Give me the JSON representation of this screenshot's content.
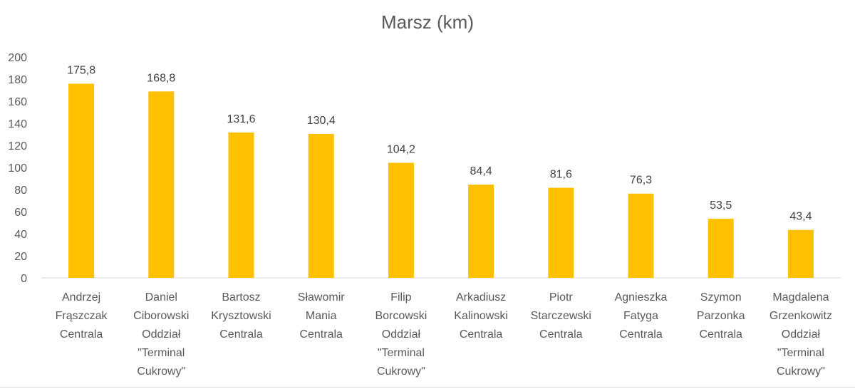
{
  "chart_data": {
    "type": "bar",
    "title": "Marsz (km)",
    "xlabel": "",
    "ylabel": "",
    "ylim": [
      0,
      200
    ],
    "yticks": [
      0,
      20,
      40,
      60,
      80,
      100,
      120,
      140,
      160,
      180,
      200
    ],
    "grid": false,
    "legend": "none",
    "bar_color": "#FFC000",
    "categories": [
      [
        "Andrzej",
        "Frąszczak",
        "Centrala"
      ],
      [
        "Daniel",
        "Ciborowski",
        "Oddział",
        "\"Terminal",
        "Cukrowy\""
      ],
      [
        "Bartosz",
        "Krysztowski",
        "Centrala"
      ],
      [
        "Sławomir",
        "Mania",
        "Centrala"
      ],
      [
        "Filip",
        "Borcowski",
        "Oddział",
        "\"Terminal",
        "Cukrowy\""
      ],
      [
        "Arkadiusz",
        "Kalinowski",
        "Centrala"
      ],
      [
        "Piotr",
        "Starczewski",
        "Centrala"
      ],
      [
        "Agnieszka",
        "Fatyga",
        "Centrala"
      ],
      [
        "Szymon",
        "Parzonka",
        "Centrala"
      ],
      [
        "Magdalena",
        "Grzenkowitz",
        "Oddział",
        "\"Terminal",
        "Cukrowy\""
      ]
    ],
    "values": [
      175.8,
      168.8,
      131.6,
      130.4,
      104.2,
      84.4,
      81.6,
      76.3,
      53.5,
      43.4
    ],
    "data_labels": [
      "175,8",
      "168,8",
      "131,6",
      "130,4",
      "104,2",
      "84,4",
      "81,6",
      "76,3",
      "53,5",
      "43,4"
    ]
  }
}
